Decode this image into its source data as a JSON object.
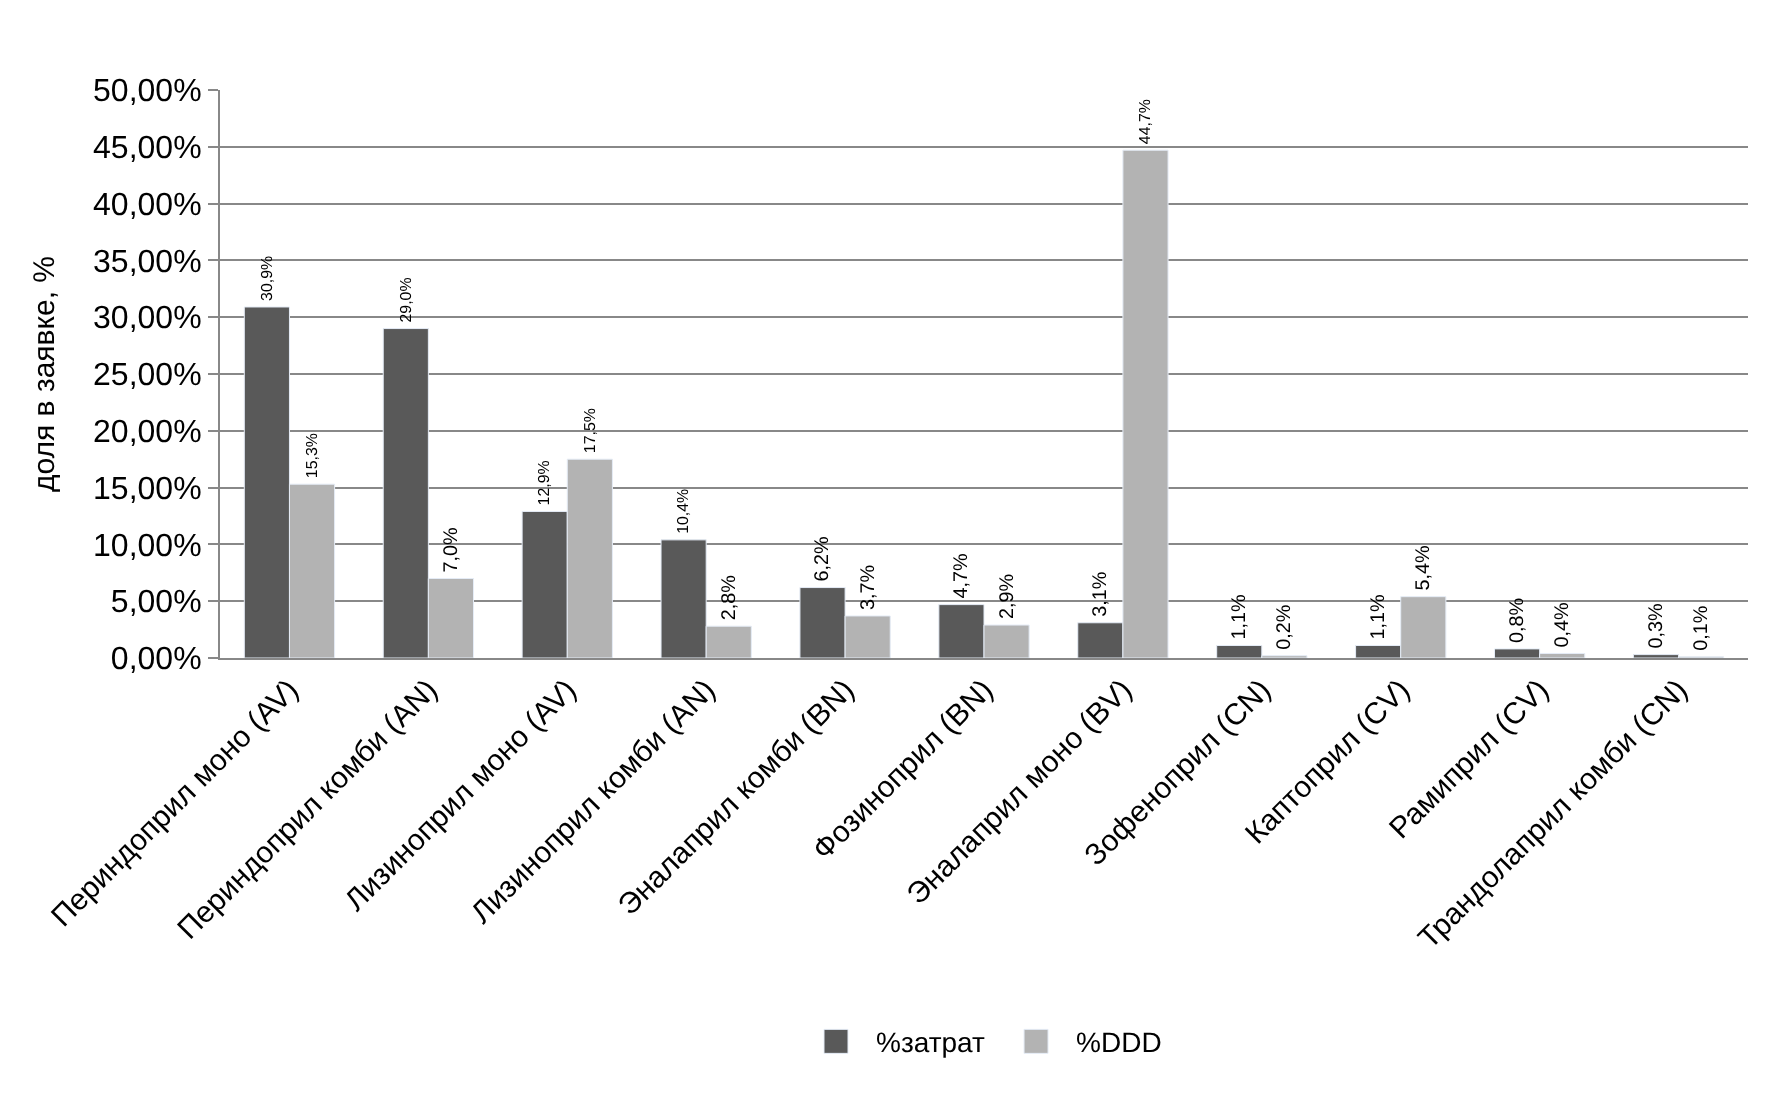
{
  "chart_data": {
    "type": "bar",
    "ylabel": "доля в заявке, %",
    "categories": [
      "Периндоприл моно (AV)",
      "Периндоприл комби (AN)",
      "Лизиноприл моно (AV)",
      "Лизиноприл комби (AN)",
      "Эналаприл комби (BN)",
      "Фозиноприл (BN)",
      "Эналаприл моно (BV)",
      "Зофеноприл (CN)",
      "Каптоприл (CV)",
      "Рамиприл (CV)",
      "Трандолаприл комби (CN)"
    ],
    "series": [
      {
        "name": "%затрат",
        "color": "#595959",
        "values": [
          30.9,
          29.0,
          12.9,
          10.4,
          6.2,
          4.7,
          3.1,
          1.1,
          1.1,
          0.8,
          0.3
        ],
        "value_labels": [
          "30,9%",
          "29,0%",
          "12,9%",
          "10,4%",
          "6,2%",
          "4,7%",
          "3,1%",
          "1,1%",
          "1,1%",
          "0,8%",
          "0,3%"
        ]
      },
      {
        "name": "%DDD",
        "color": "#b3b3b3",
        "values": [
          15.3,
          7.0,
          17.5,
          2.8,
          3.7,
          2.9,
          44.7,
          0.2,
          5.4,
          0.4,
          0.1
        ],
        "value_labels": [
          "15,3%",
          "7,0%",
          "17,5%",
          "2,8%",
          "3,7%",
          "2,9%",
          "44,7%",
          "0,2%",
          "5,4%",
          "0,4%",
          "0,1%"
        ]
      }
    ],
    "ylim": [
      0,
      50
    ],
    "yticks": [
      {
        "value": 0,
        "label": "0,00%"
      },
      {
        "value": 5,
        "label": "5,00%"
      },
      {
        "value": 10,
        "label": "10,00%"
      },
      {
        "value": 15,
        "label": "15,00%"
      },
      {
        "value": 20,
        "label": "20,00%"
      },
      {
        "value": 25,
        "label": "25,00%"
      },
      {
        "value": 30,
        "label": "30,00%"
      },
      {
        "value": 35,
        "label": "35,00%"
      },
      {
        "value": 40,
        "label": "40,00%"
      },
      {
        "value": 45,
        "label": "45,00%"
      },
      {
        "value": 50,
        "label": "50,00%"
      }
    ],
    "grid": "y",
    "legend": "bottom"
  }
}
